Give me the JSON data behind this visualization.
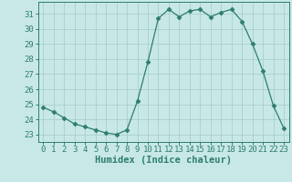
{
  "x": [
    0,
    1,
    2,
    3,
    4,
    5,
    6,
    7,
    8,
    9,
    10,
    11,
    12,
    13,
    14,
    15,
    16,
    17,
    18,
    19,
    20,
    21,
    22,
    23
  ],
  "y": [
    24.8,
    24.5,
    24.1,
    23.7,
    23.5,
    23.3,
    23.1,
    23.0,
    23.3,
    25.2,
    27.8,
    30.7,
    31.3,
    30.8,
    31.2,
    31.3,
    30.8,
    31.1,
    31.3,
    30.5,
    29.0,
    27.2,
    24.9,
    23.4
  ],
  "line_color": "#2e7d6e",
  "marker": "D",
  "marker_size": 2.5,
  "bg_color": "#c8e8e8",
  "grid_color": "#aacece",
  "axis_color": "#2e7d6e",
  "tick_color": "#2e7d6e",
  "xlabel": "Humidex (Indice chaleur)",
  "ylim": [
    22.5,
    31.8
  ],
  "xlim": [
    -0.5,
    23.5
  ],
  "yticks": [
    23,
    24,
    25,
    26,
    27,
    28,
    29,
    30,
    31
  ],
  "xticks": [
    0,
    1,
    2,
    3,
    4,
    5,
    6,
    7,
    8,
    9,
    10,
    11,
    12,
    13,
    14,
    15,
    16,
    17,
    18,
    19,
    20,
    21,
    22,
    23
  ],
  "tick_fontsize": 6.5,
  "label_fontsize": 7.5
}
